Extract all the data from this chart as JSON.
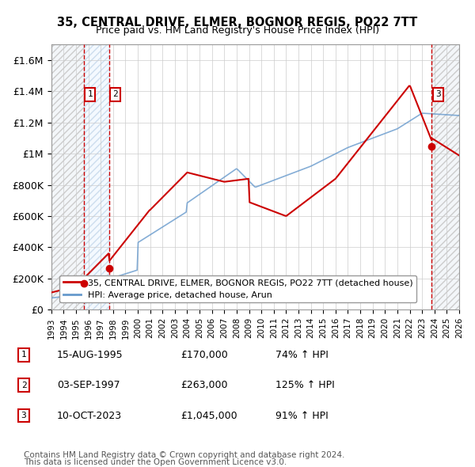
{
  "title": "35, CENTRAL DRIVE, ELMER, BOGNOR REGIS, PO22 7TT",
  "subtitle": "Price paid vs. HM Land Registry's House Price Index (HPI)",
  "xlabel": "",
  "ylabel": "",
  "hpi_label": "HPI: Average price, detached house, Arun",
  "property_label": "35, CENTRAL DRIVE, ELMER, BOGNOR REGIS, PO22 7TT (detached house)",
  "footnote1": "Contains HM Land Registry data © Crown copyright and database right 2024.",
  "footnote2": "This data is licensed under the Open Government Licence v3.0.",
  "sale_points": [
    {
      "date_num": 1995.62,
      "price": 170000,
      "label": "1",
      "date_str": "15-AUG-1995",
      "price_str": "£170,000",
      "hpi_str": "74% ↑ HPI"
    },
    {
      "date_num": 1997.67,
      "price": 263000,
      "label": "2",
      "date_str": "03-SEP-1997",
      "price_str": "£263,000",
      "hpi_str": "125% ↑ HPI"
    },
    {
      "date_num": 2023.78,
      "price": 1045000,
      "label": "3",
      "date_str": "10-OCT-2023",
      "price_str": "£1,045,000",
      "hpi_str": "91% ↑ HPI"
    }
  ],
  "property_line_color": "#cc0000",
  "hpi_line_color": "#6699cc",
  "hpi_line_alpha": 0.8,
  "hatch_color": "#dddddd",
  "dashed_vline_color": "#cc0000",
  "xmin": 1993,
  "xmax": 2026,
  "ymin": 0,
  "ymax": 1700000,
  "yticks": [
    0,
    200000,
    400000,
    600000,
    800000,
    1000000,
    1200000,
    1400000,
    1600000
  ],
  "ytick_labels": [
    "£0",
    "£200K",
    "£400K",
    "£600K",
    "£800K",
    "£1M",
    "£1.2M",
    "£1.4M",
    "£1.6M"
  ],
  "xticks": [
    1993,
    1994,
    1995,
    1996,
    1997,
    1998,
    1999,
    2000,
    2001,
    2002,
    2003,
    2004,
    2005,
    2006,
    2007,
    2008,
    2009,
    2010,
    2011,
    2012,
    2013,
    2014,
    2015,
    2016,
    2017,
    2018,
    2019,
    2020,
    2021,
    2022,
    2023,
    2024,
    2025,
    2026
  ],
  "bg_color": "#ffffff",
  "plot_bg_color": "#ffffff"
}
